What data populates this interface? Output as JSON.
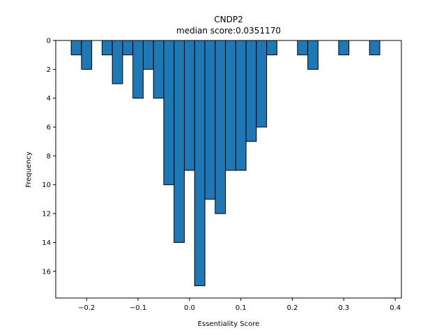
{
  "chart_data": {
    "type": "bar",
    "title": "CNDP2",
    "subtitle": "median score:0.0351170",
    "xlabel": "Essentiality Score",
    "ylabel": "Frequency",
    "xlim": [
      -0.26,
      0.412
    ],
    "ylim": [
      17.85,
      0
    ],
    "y_inverted": true,
    "grid": false,
    "bar_color": "#1f77b4",
    "edge_color": "#000000",
    "bin_width": 0.02,
    "bins": [
      {
        "x0": -0.23,
        "count": 1
      },
      {
        "x0": -0.21,
        "count": 2
      },
      {
        "x0": -0.17,
        "count": 1
      },
      {
        "x0": -0.15,
        "count": 3
      },
      {
        "x0": -0.13,
        "count": 1
      },
      {
        "x0": -0.11,
        "count": 4
      },
      {
        "x0": -0.09,
        "count": 2
      },
      {
        "x0": -0.07,
        "count": 4
      },
      {
        "x0": -0.05,
        "count": 10
      },
      {
        "x0": -0.03,
        "count": 14
      },
      {
        "x0": -0.01,
        "count": 9
      },
      {
        "x0": 0.01,
        "count": 17
      },
      {
        "x0": 0.03,
        "count": 11
      },
      {
        "x0": 0.05,
        "count": 12
      },
      {
        "x0": 0.07,
        "count": 9
      },
      {
        "x0": 0.09,
        "count": 9
      },
      {
        "x0": 0.11,
        "count": 7
      },
      {
        "x0": 0.13,
        "count": 6
      },
      {
        "x0": 0.15,
        "count": 1
      },
      {
        "x0": 0.21,
        "count": 1
      },
      {
        "x0": 0.23,
        "count": 2
      },
      {
        "x0": 0.29,
        "count": 1
      },
      {
        "x0": 0.35,
        "count": 1
      }
    ],
    "x_ticks": [
      {
        "value": -0.2,
        "label": "−0.2"
      },
      {
        "value": -0.1,
        "label": "−0.1"
      },
      {
        "value": 0.0,
        "label": "0.0"
      },
      {
        "value": 0.1,
        "label": "0.1"
      },
      {
        "value": 0.2,
        "label": "0.2"
      },
      {
        "value": 0.3,
        "label": "0.3"
      },
      {
        "value": 0.4,
        "label": "0.4"
      }
    ],
    "y_ticks": [
      {
        "value": 0,
        "label": "0"
      },
      {
        "value": 2,
        "label": "2"
      },
      {
        "value": 4,
        "label": "4"
      },
      {
        "value": 6,
        "label": "6"
      },
      {
        "value": 8,
        "label": "8"
      },
      {
        "value": 10,
        "label": "10"
      },
      {
        "value": 12,
        "label": "12"
      },
      {
        "value": 14,
        "label": "14"
      },
      {
        "value": 16,
        "label": "16"
      }
    ]
  }
}
